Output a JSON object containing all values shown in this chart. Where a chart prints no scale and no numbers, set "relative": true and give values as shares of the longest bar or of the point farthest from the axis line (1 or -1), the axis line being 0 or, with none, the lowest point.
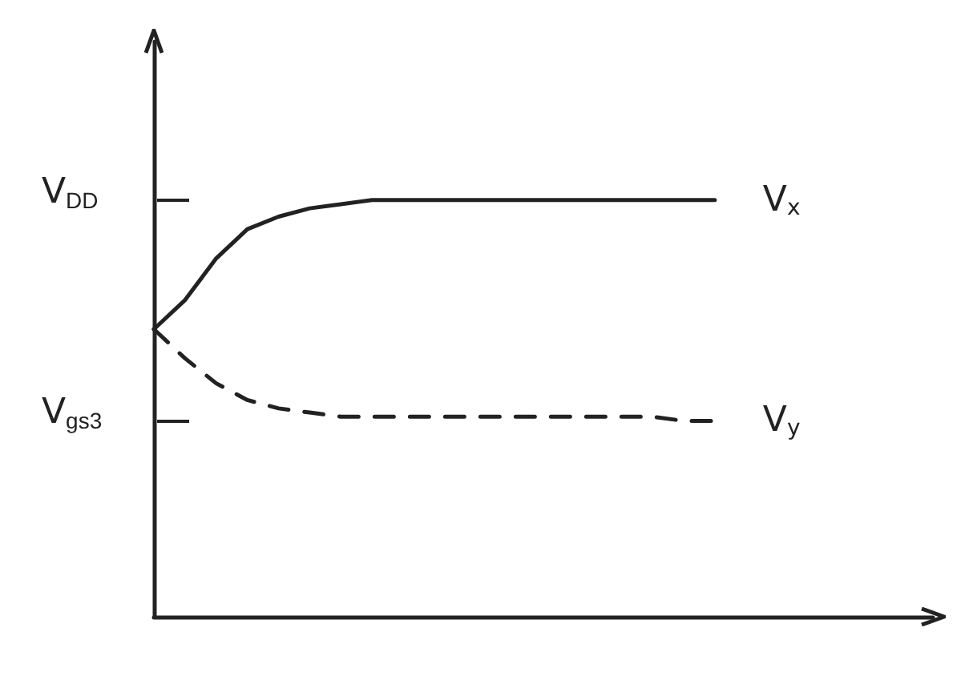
{
  "chart_data": {
    "type": "line",
    "relative": true,
    "categories": [
      null,
      null,
      null,
      null,
      null,
      null,
      null,
      null,
      null,
      null,
      null,
      null,
      null,
      null,
      null,
      null,
      null,
      null,
      null,
      null,
      null,
      null,
      null,
      null,
      null,
      null
    ],
    "series": [
      {
        "name": "V$_{x}$",
        "color": "#222222",
        "line_style": "solid",
        "values": [
          0.69,
          0.76,
          0.86,
          0.93,
          0.96,
          0.98,
          0.99,
          1,
          1,
          1,
          1,
          1,
          1,
          1,
          1,
          1,
          1,
          1,
          1,
          null,
          null,
          null,
          null,
          null,
          null,
          null
        ]
      },
      {
        "name": "V$_{y}$",
        "color": "#222222",
        "line_style": "dashed",
        "values": [
          0.69,
          0.62,
          0.56,
          0.52,
          0.5,
          0.49,
          0.48,
          0.48,
          0.48,
          0.48,
          0.48,
          0.48,
          0.48,
          0.48,
          0.48,
          0.48,
          0.48,
          0.47,
          0.47,
          null,
          null,
          null,
          null,
          null,
          null,
          null
        ]
      }
    ],
    "annotations": [
      "V$_{DD}$",
      "V$_{gs3}$"
    ],
    "grid": false,
    "legend": false,
    "marker": "none"
  }
}
